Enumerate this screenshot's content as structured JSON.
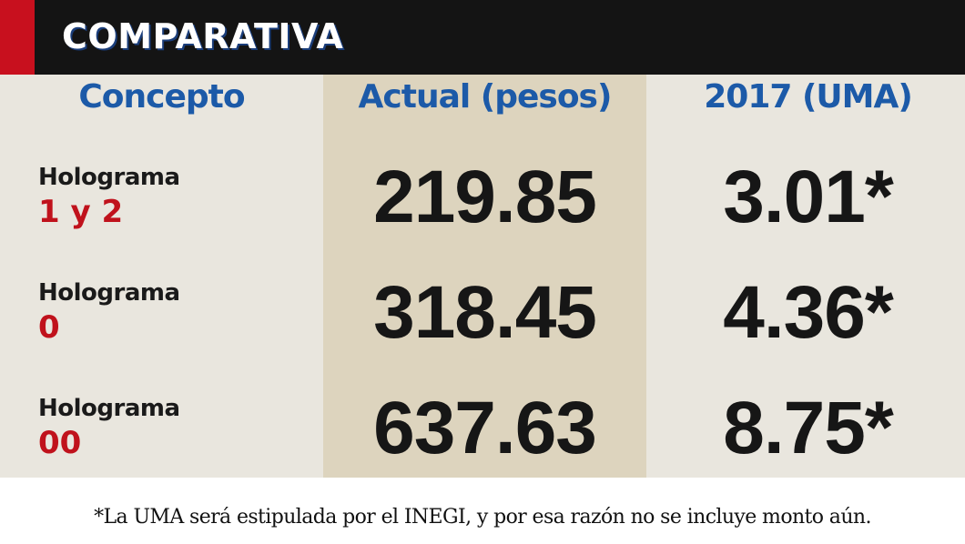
{
  "header": {
    "title": "COMPARATIVA"
  },
  "table": {
    "columns": [
      "Concepto",
      "Actual (pesos)",
      "2017 (UMA)"
    ],
    "rows": [
      [
        [
          "Holograma",
          "1 y 2"
        ],
        "219.85",
        "3.01*"
      ],
      [
        [
          "Holograma",
          "0"
        ],
        "318.45",
        "4.36*"
      ],
      [
        [
          "Holograma",
          "00"
        ],
        "637.63",
        "8.75*"
      ]
    ]
  },
  "footnote": "*La UMA será estipulada por el INEGI, y por esa razón no se incluye monto aún."
}
